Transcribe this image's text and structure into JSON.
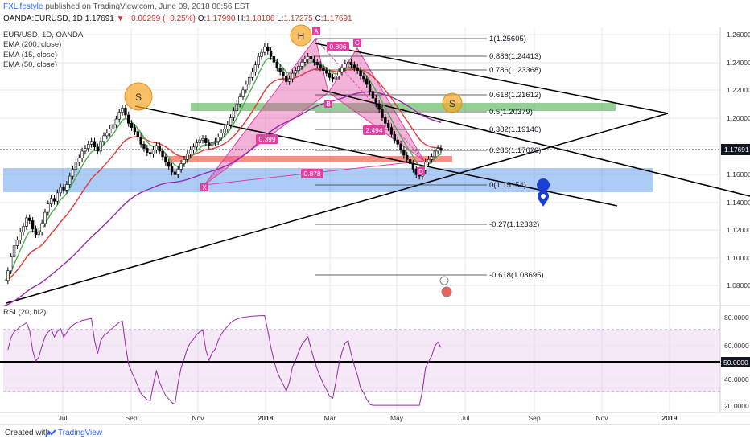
{
  "header": {
    "user": "FXLifestyle",
    "published": "published on TradingView.com, June 09, 2018 08:56 EST"
  },
  "ohlc": {
    "symbol": "OANDA:EURUSD, 1D",
    "last": "1.17691",
    "change": "−0.00299 (−0.25%)",
    "open_label": "O:",
    "open": "1.17990",
    "high_label": "H:",
    "high": "1.18106",
    "low_label": "L:",
    "low": "1.17275",
    "close_label": "C:",
    "close": "1.17691"
  },
  "legend": {
    "symbol": "EUR/USD, 1D, OANDA",
    "ema200": "EMA (200, close)",
    "ema15": "EMA (15, close)",
    "ema50": "EMA (50, close)"
  },
  "rsi_label": "RSI (20, hl2)",
  "footer": {
    "created": "Created with",
    "brand": "TradingView"
  },
  "colors": {
    "candle": "#000000",
    "ema200": "#9c27b0",
    "ema15": "#4caf50",
    "ema50": "#e53935",
    "harmonic": "#e040a0",
    "supply_zone": "#4caf50",
    "demand_zone": "#4a8fe8",
    "prz_zone": "#f44336",
    "rsi_line": "#9c27b0",
    "price_tag": "#131722"
  },
  "chart_data": {
    "type": "candlestick",
    "instrument": "EUR/USD",
    "timeframe": "1D",
    "x_ticks": [
      "Jul",
      "Sep",
      "Nov",
      "2018",
      "Mar",
      "May",
      "Jul",
      "Sep",
      "Nov",
      "2019"
    ],
    "y_ticks": [
      "1.26000",
      "1.24000",
      "1.22000",
      "1.20000",
      "1.18000",
      "1.16000",
      "1.14000",
      "1.12000",
      "1.10000",
      "1.08000"
    ],
    "ylim": [
      1.065,
      1.265
    ],
    "current_price": "1.17691",
    "close_series": [
      1.083,
      1.09,
      1.1,
      1.108,
      1.112,
      1.118,
      1.122,
      1.128,
      1.126,
      1.12,
      1.116,
      1.118,
      1.124,
      1.132,
      1.138,
      1.142,
      1.14,
      1.146,
      1.15,
      1.148,
      1.152,
      1.158,
      1.163,
      1.168,
      1.171,
      1.176,
      1.178,
      1.181,
      1.183,
      1.179,
      1.176,
      1.183,
      1.187,
      1.189,
      1.192,
      1.195,
      1.199,
      1.204,
      1.207,
      1.202,
      1.196,
      1.193,
      1.19,
      1.186,
      1.181,
      1.178,
      1.175,
      1.174,
      1.177,
      1.18,
      1.176,
      1.172,
      1.168,
      1.165,
      1.161,
      1.159,
      1.163,
      1.167,
      1.17,
      1.174,
      1.177,
      1.179,
      1.182,
      1.184,
      1.185,
      1.182,
      1.18,
      1.182,
      1.183,
      1.186,
      1.189,
      1.192,
      1.195,
      1.2,
      1.205,
      1.21,
      1.215,
      1.22,
      1.224,
      1.229,
      1.233,
      1.238,
      1.244,
      1.247,
      1.251,
      1.248,
      1.244,
      1.24,
      1.236,
      1.233,
      1.23,
      1.226,
      1.228,
      1.232,
      1.234,
      1.237,
      1.24,
      1.242,
      1.244,
      1.242,
      1.24,
      1.238,
      1.236,
      1.234,
      1.232,
      1.229,
      1.228,
      1.23,
      1.233,
      1.236,
      1.239,
      1.24,
      1.238,
      1.236,
      1.234,
      1.23,
      1.228,
      1.224,
      1.219,
      1.214,
      1.21,
      1.206,
      1.2,
      1.196,
      1.193,
      1.188,
      1.184,
      1.181,
      1.177,
      1.173,
      1.17,
      1.167,
      1.163,
      1.159,
      1.158,
      1.162,
      1.168,
      1.17,
      1.172,
      1.176,
      1.178,
      1.177
    ],
    "fib_levels": [
      {
        "label": "1(1.25605)",
        "value": 1.25605
      },
      {
        "label": "0.886(1.24413)",
        "value": 1.24413
      },
      {
        "label": "0.786(1.23368)",
        "value": 1.23368
      },
      {
        "label": "0.618(1.21612)",
        "value": 1.21612
      },
      {
        "label": "0.5(1.20379)",
        "value": 1.20379
      },
      {
        "label": "0.382(1.19146)",
        "value": 1.19146
      },
      {
        "label": "0.236(1.17620)",
        "value": 1.1762
      },
      {
        "label": "0(1.15154)",
        "value": 1.15154
      },
      {
        "label": "-0.27(1.12332)",
        "value": 1.12332
      },
      {
        "label": "-0.618(1.08695)",
        "value": 1.08695
      }
    ],
    "harmonic_points": [
      "X",
      "A",
      "B",
      "C",
      "D"
    ],
    "harmonic_ratios": [
      "0.806",
      "0.399",
      "0.878",
      "2.494"
    ],
    "head_shoulders": [
      "S",
      "H",
      "S"
    ],
    "rsi": {
      "y_ticks": [
        "80.0000",
        "60.0000",
        "40.0000",
        "20.0000"
      ],
      "current": "50.0000",
      "ylim": [
        17,
        90
      ]
    }
  }
}
